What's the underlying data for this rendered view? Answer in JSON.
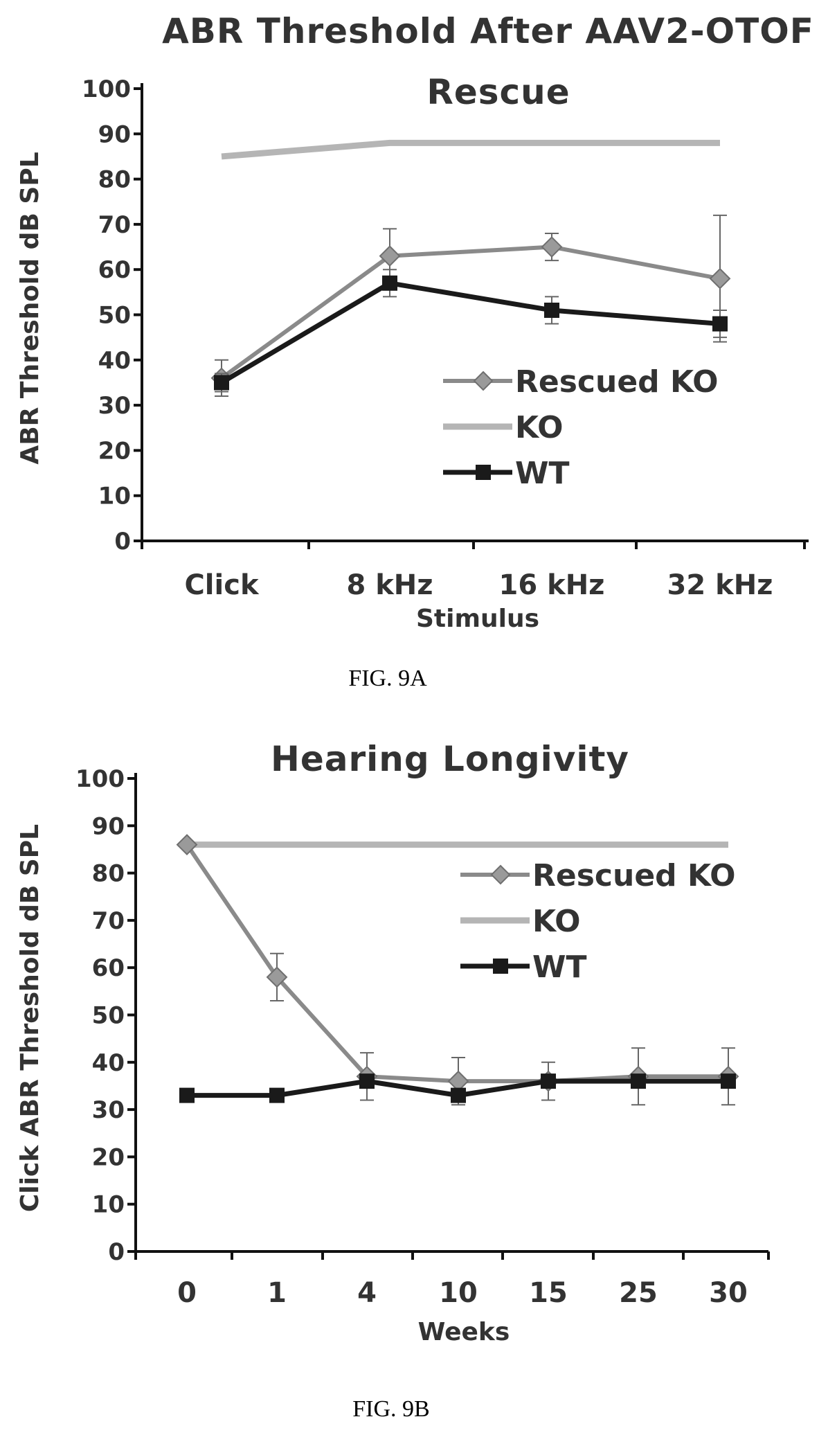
{
  "chart_data": [
    {
      "type": "line",
      "title": "ABR Threshold After AAV2-OTOF Rescue",
      "ylabel": "ABR Threshold dB SPL",
      "xlabel": "Stimulus",
      "caption": "FIG. 9A",
      "categories": [
        "Click",
        "8 kHz",
        "16 kHz",
        "32 kHz"
      ],
      "ylim": [
        0,
        100
      ],
      "yticks": [
        0,
        10,
        20,
        30,
        40,
        50,
        60,
        70,
        80,
        90,
        100
      ],
      "grid": false,
      "legend_position": "right-center",
      "series": [
        {
          "name": "Rescued KO",
          "values": [
            36,
            63,
            65,
            58
          ],
          "errors": [
            4,
            6,
            3,
            14
          ],
          "marker": "diamond",
          "color": "#8a8a8a"
        },
        {
          "name": "KO",
          "values": [
            85,
            88,
            88,
            88
          ],
          "errors": [
            0,
            0,
            0,
            0
          ],
          "marker": "none",
          "color": "#b5b5b5"
        },
        {
          "name": "WT",
          "values": [
            35,
            57,
            51,
            48
          ],
          "errors": [
            2,
            3,
            3,
            3
          ],
          "marker": "square",
          "color": "#1a1a1a"
        }
      ]
    },
    {
      "type": "line",
      "title": "Hearing Longivity",
      "ylabel": "Click ABR Threshold dB SPL",
      "xlabel": "Weeks",
      "caption": "FIG. 9B",
      "categories": [
        "0",
        "1",
        "4",
        "10",
        "15",
        "25",
        "30"
      ],
      "ylim": [
        0,
        100
      ],
      "yticks": [
        0,
        10,
        20,
        30,
        40,
        50,
        60,
        70,
        80,
        90,
        100
      ],
      "grid": false,
      "legend_position": "top-right",
      "series": [
        {
          "name": "Rescued KO",
          "values": [
            86,
            58,
            37,
            36,
            36,
            37,
            37
          ],
          "errors": [
            0,
            5,
            5,
            5,
            4,
            6,
            6
          ],
          "marker": "diamond",
          "color": "#8a8a8a"
        },
        {
          "name": "KO",
          "values": [
            86,
            86,
            86,
            86,
            86,
            86,
            86
          ],
          "errors": [
            0,
            0,
            0,
            0,
            0,
            0,
            0
          ],
          "marker": "none",
          "color": "#b5b5b5"
        },
        {
          "name": "WT",
          "values": [
            33,
            33,
            36,
            33,
            36,
            36,
            36
          ],
          "errors": [
            0,
            0,
            0,
            0,
            0,
            0,
            0
          ],
          "marker": "square",
          "color": "#1a1a1a"
        }
      ]
    }
  ]
}
